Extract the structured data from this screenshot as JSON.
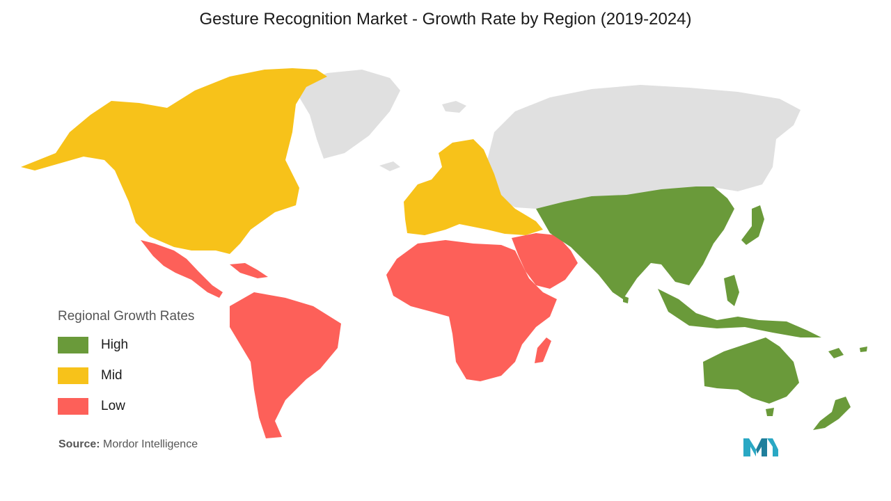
{
  "title": "Gesture Recognition Market - Growth Rate by Region (2019-2024)",
  "legend": {
    "title": "Regional Growth Rates",
    "items": [
      {
        "label": "High",
        "color": "#6a9a3a"
      },
      {
        "label": "Mid",
        "color": "#f7c21a"
      },
      {
        "label": "Low",
        "color": "#fd6059"
      }
    ]
  },
  "colors": {
    "high": "#6a9a3a",
    "mid": "#f7c21a",
    "low": "#fd6059",
    "no_data": "#e0e0e0"
  },
  "regions": [
    {
      "name": "North America",
      "rate": "Mid"
    },
    {
      "name": "Europe",
      "rate": "Mid"
    },
    {
      "name": "Asia-Pacific",
      "rate": "High"
    },
    {
      "name": "Latin America",
      "rate": "Low"
    },
    {
      "name": "Middle East and Africa",
      "rate": "Low"
    },
    {
      "name": "Greenland",
      "rate": "No data"
    },
    {
      "name": "Russia",
      "rate": "No data"
    }
  ],
  "source": {
    "label": "Source:",
    "text": "Mordor Intelligence"
  },
  "logo": {
    "icon": "mordor-intelligence-logo"
  }
}
